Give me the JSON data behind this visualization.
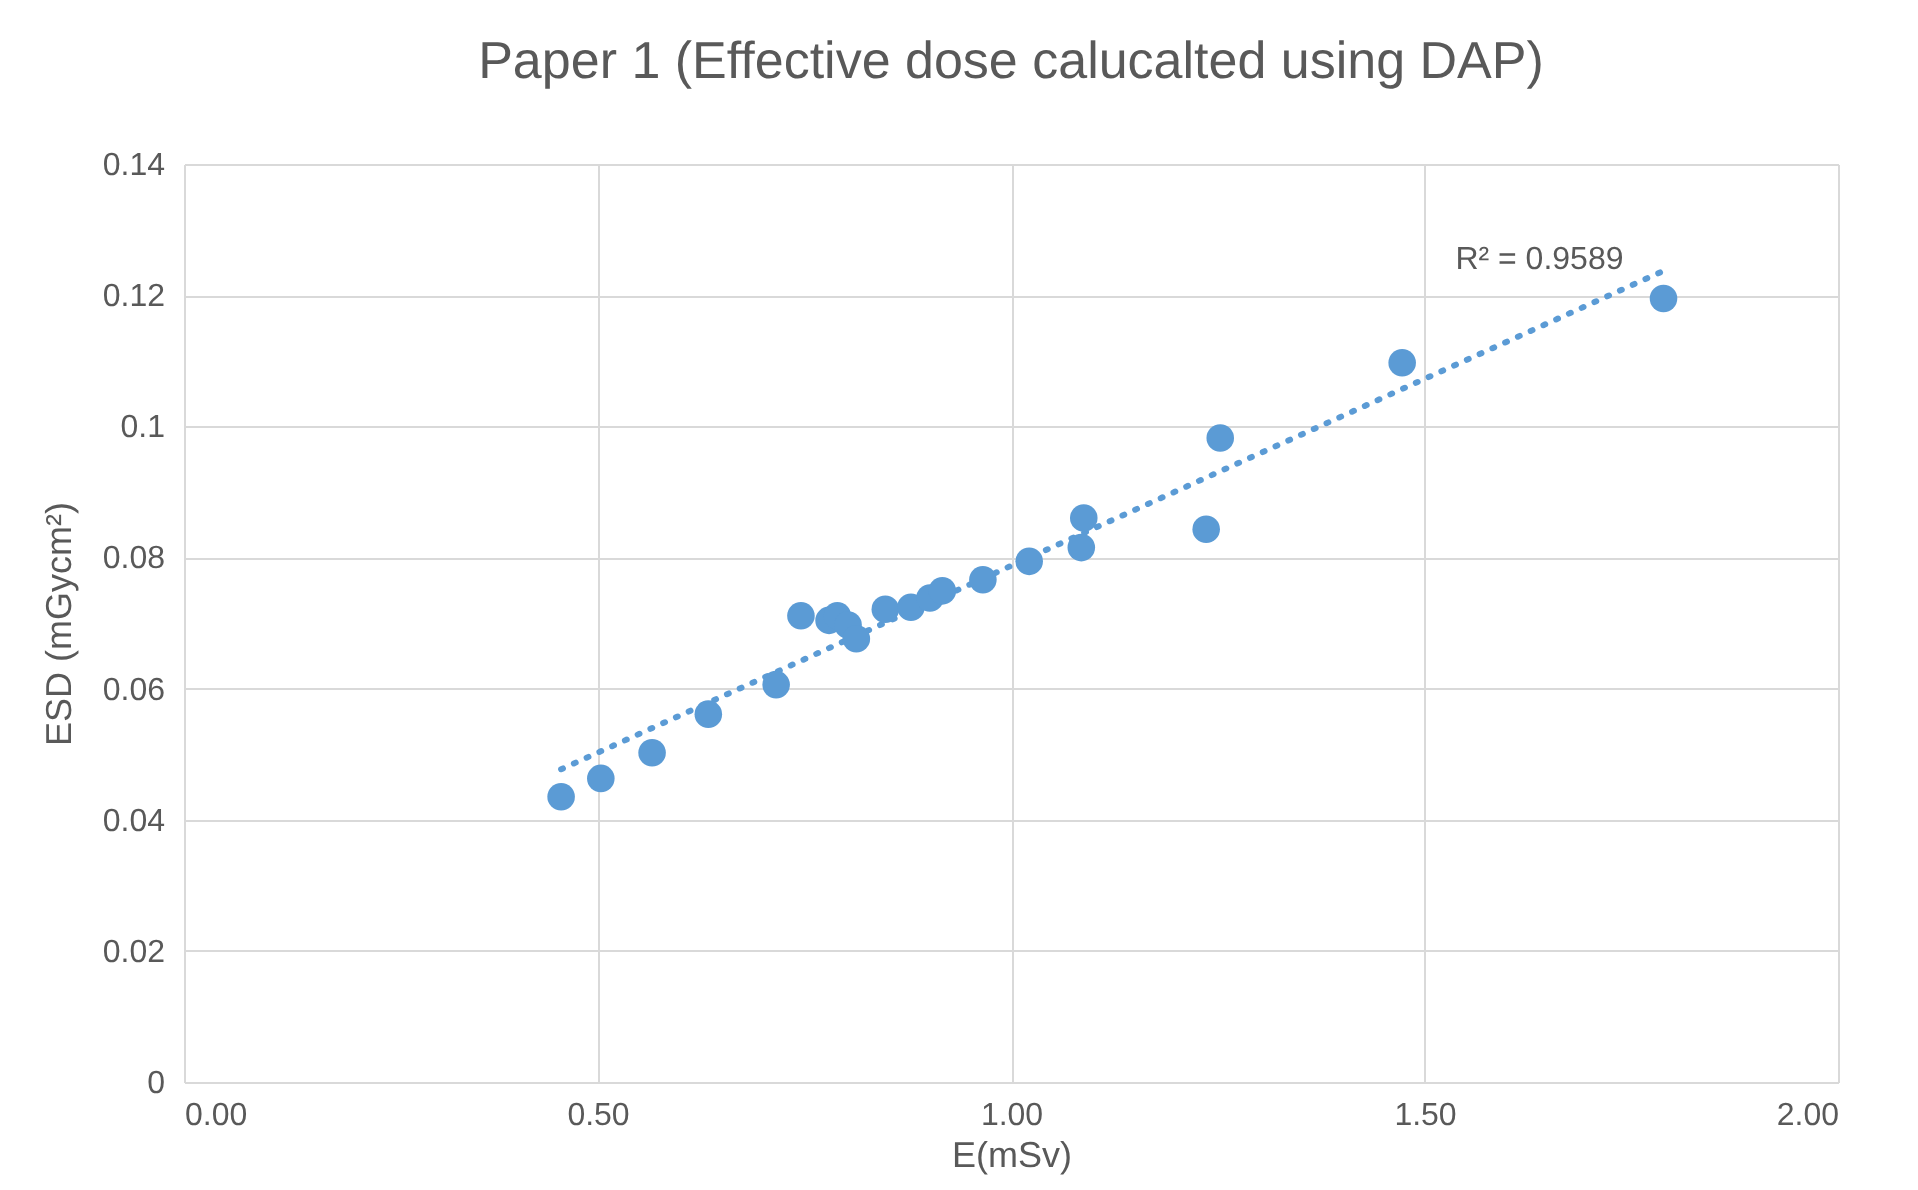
{
  "chart_data": {
    "type": "scatter",
    "title": "Paper 1 (Effective dose calucalted using DAP)",
    "xlabel": "E(mSv)",
    "ylabel": "ESD (mGycm²)",
    "x": [
      0.456,
      0.504,
      0.566,
      0.634,
      0.716,
      0.746,
      0.78,
      0.79,
      0.803,
      0.813,
      0.848,
      0.879,
      0.902,
      0.917,
      0.966,
      1.022,
      1.085,
      1.088,
      1.236,
      1.253,
      1.473,
      1.789
    ],
    "series": [
      {
        "marker": "circle",
        "color": "#5b9bd5",
        "values": [
          0.0435,
          0.0463,
          0.0502,
          0.0561,
          0.0606,
          0.0711,
          0.0704,
          0.0711,
          0.0697,
          0.0676,
          0.0721,
          0.0724,
          0.0738,
          0.0749,
          0.0766,
          0.0794,
          0.0815,
          0.086,
          0.0843,
          0.0982,
          0.1097,
          0.1195
        ]
      },
      {
        "type": "line",
        "color": "#5b9bd5",
        "line_style": "dotted",
        "x": [
          0.456,
          1.789
        ],
        "values": [
          0.0477,
          0.1237
        ]
      }
    ],
    "annotations": [
      "R² = 0.9589"
    ],
    "xlim": [
      0,
      2
    ],
    "xticks": [
      {
        "value": 0,
        "label": "0.00"
      },
      {
        "value": 0.5,
        "label": "0.50"
      },
      {
        "value": 1,
        "label": "1.00"
      },
      {
        "value": 1.5,
        "label": "1.50"
      },
      {
        "value": 2,
        "label": "2.00"
      }
    ],
    "ylim": [
      0,
      0.14
    ],
    "yticks": [
      0,
      0.02,
      0.04,
      0.06,
      0.08,
      0.1,
      0.12,
      0.14
    ],
    "grid": true
  }
}
